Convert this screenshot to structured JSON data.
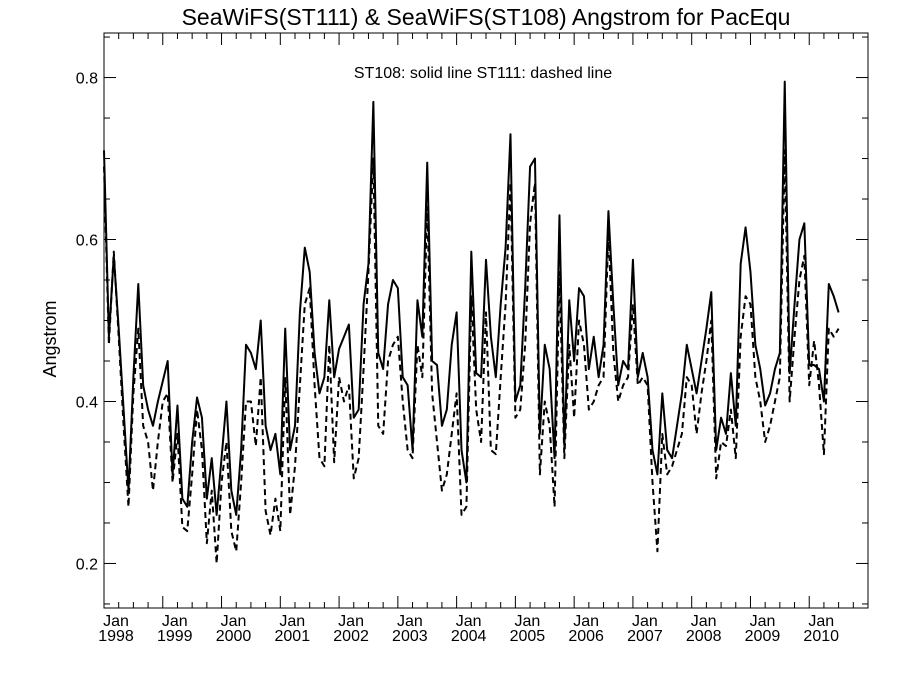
{
  "chart_data": {
    "type": "line",
    "title": "SeaWiFS(ST111) & SeaWiFS(ST108)  Angstrom for PacEqu",
    "xlabel": "",
    "ylabel": "Angstrom",
    "annotation": "ST108: solid line   ST111: dashed line",
    "x_start": "Jan 1998",
    "x_end": "Dec 2010",
    "x_step": "month",
    "xlim": [
      0,
      156
    ],
    "ylim": [
      0.145,
      0.855
    ],
    "x_ticks": [
      {
        "month": "Jan",
        "year": "1998",
        "x": 0
      },
      {
        "month": "Jan",
        "year": "1999",
        "x": 12
      },
      {
        "month": "Jan",
        "year": "2000",
        "x": 24
      },
      {
        "month": "Jan",
        "year": "2001",
        "x": 36
      },
      {
        "month": "Jan",
        "year": "2002",
        "x": 48
      },
      {
        "month": "Jan",
        "year": "2003",
        "x": 60
      },
      {
        "month": "Jan",
        "year": "2004",
        "x": 72
      },
      {
        "month": "Jan",
        "year": "2005",
        "x": 84
      },
      {
        "month": "Jan",
        "year": "2006",
        "x": 96
      },
      {
        "month": "Jan",
        "year": "2007",
        "x": 108
      },
      {
        "month": "Jan",
        "year": "2008",
        "x": 120
      },
      {
        "month": "Jan",
        "year": "2009",
        "x": 132
      },
      {
        "month": "Jan",
        "year": "2010",
        "x": 144
      }
    ],
    "y_ticks": [
      {
        "value": 0.2,
        "label": "0.2"
      },
      {
        "value": 0.4,
        "label": "0.4"
      },
      {
        "value": 0.6,
        "label": "0.6"
      },
      {
        "value": 0.8,
        "label": "0.8"
      }
    ],
    "grid": false,
    "series": [
      {
        "name": "ST108",
        "style": "solid",
        "color": "#000000",
        "values": [
          0.71,
          0.48,
          0.58,
          0.49,
          0.39,
          0.29,
          0.43,
          0.545,
          0.42,
          0.39,
          0.37,
          0.4,
          0.425,
          0.45,
          0.31,
          0.395,
          0.28,
          0.27,
          0.35,
          0.405,
          0.38,
          0.28,
          0.33,
          0.26,
          0.33,
          0.4,
          0.29,
          0.26,
          0.34,
          0.47,
          0.46,
          0.44,
          0.5,
          0.37,
          0.34,
          0.36,
          0.31,
          0.49,
          0.34,
          0.37,
          0.51,
          0.59,
          0.56,
          0.46,
          0.41,
          0.43,
          0.525,
          0.43,
          0.465,
          0.48,
          0.495,
          0.38,
          0.39,
          0.52,
          0.57,
          0.77,
          0.46,
          0.44,
          0.52,
          0.55,
          0.54,
          0.43,
          0.42,
          0.34,
          0.525,
          0.48,
          0.695,
          0.45,
          0.445,
          0.37,
          0.39,
          0.47,
          0.51,
          0.34,
          0.3,
          0.585,
          0.435,
          0.43,
          0.575,
          0.48,
          0.43,
          0.52,
          0.59,
          0.73,
          0.4,
          0.42,
          0.54,
          0.69,
          0.7,
          0.36,
          0.47,
          0.44,
          0.33,
          0.63,
          0.345,
          0.525,
          0.45,
          0.54,
          0.53,
          0.44,
          0.48,
          0.43,
          0.47,
          0.635,
          0.52,
          0.42,
          0.45,
          0.44,
          0.575,
          0.43,
          0.46,
          0.43,
          0.34,
          0.31,
          0.41,
          0.34,
          0.33,
          0.37,
          0.41,
          0.47,
          0.44,
          0.41,
          0.45,
          0.49,
          0.535,
          0.34,
          0.38,
          0.36,
          0.435,
          0.37,
          0.57,
          0.615,
          0.56,
          0.47,
          0.44,
          0.395,
          0.41,
          0.44,
          0.46,
          0.795,
          0.435,
          0.52,
          0.6,
          0.62,
          0.445,
          0.445,
          0.44,
          0.4,
          0.545,
          0.53,
          0.51
        ]
      },
      {
        "name": "ST111",
        "style": "dashed",
        "color": "#000000",
        "values": [
          0.69,
          0.47,
          0.585,
          0.48,
          0.37,
          0.27,
          0.41,
          0.49,
          0.37,
          0.35,
          0.29,
          0.35,
          0.4,
          0.41,
          0.3,
          0.36,
          0.245,
          0.24,
          0.31,
          0.39,
          0.34,
          0.225,
          0.29,
          0.2,
          0.3,
          0.35,
          0.24,
          0.215,
          0.3,
          0.4,
          0.4,
          0.345,
          0.43,
          0.265,
          0.235,
          0.28,
          0.24,
          0.43,
          0.26,
          0.32,
          0.42,
          0.52,
          0.54,
          0.42,
          0.33,
          0.32,
          0.47,
          0.325,
          0.43,
          0.4,
          0.42,
          0.305,
          0.33,
          0.44,
          0.56,
          0.7,
          0.37,
          0.36,
          0.45,
          0.47,
          0.48,
          0.4,
          0.34,
          0.33,
          0.47,
          0.43,
          0.64,
          0.41,
          0.35,
          0.29,
          0.31,
          0.36,
          0.41,
          0.26,
          0.27,
          0.53,
          0.39,
          0.35,
          0.51,
          0.34,
          0.335,
          0.43,
          0.52,
          0.67,
          0.38,
          0.39,
          0.47,
          0.62,
          0.67,
          0.31,
          0.4,
          0.37,
          0.27,
          0.56,
          0.33,
          0.47,
          0.38,
          0.5,
          0.47,
          0.39,
          0.4,
          0.42,
          0.43,
          0.61,
          0.46,
          0.4,
          0.42,
          0.43,
          0.52,
          0.42,
          0.43,
          0.42,
          0.3,
          0.215,
          0.36,
          0.31,
          0.32,
          0.34,
          0.36,
          0.43,
          0.42,
          0.36,
          0.41,
          0.45,
          0.5,
          0.305,
          0.35,
          0.345,
          0.39,
          0.33,
          0.48,
          0.53,
          0.52,
          0.43,
          0.4,
          0.35,
          0.37,
          0.4,
          0.43,
          0.71,
          0.4,
          0.48,
          0.55,
          0.58,
          0.42,
          0.475,
          0.42,
          0.335,
          0.49,
          0.48,
          0.49
        ]
      }
    ]
  }
}
